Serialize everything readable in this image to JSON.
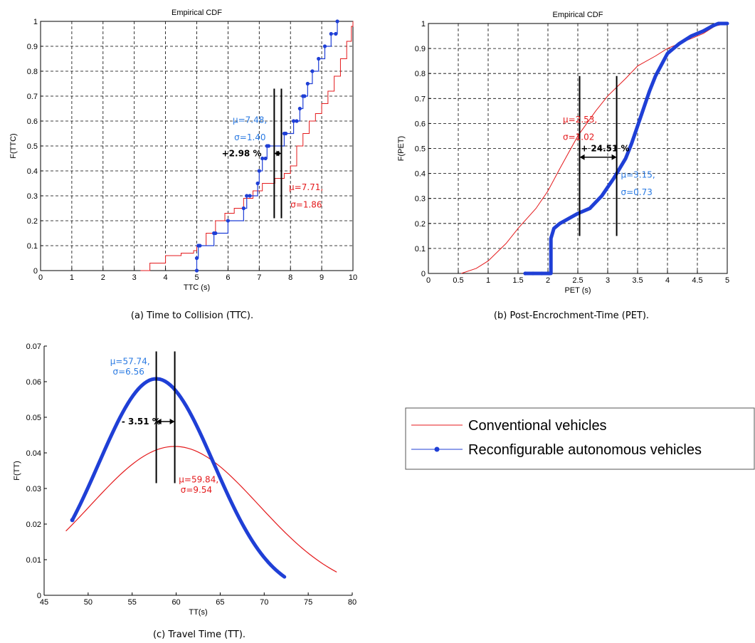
{
  "colors": {
    "conventional": "#e41a1c",
    "autonomous": "#1f3fd6",
    "annot_blue": "#2a7ae2",
    "annot_red": "#e41a1c",
    "marker": "#000000"
  },
  "legend": {
    "placement": "right-middle",
    "items": [
      "Conventional vehicles",
      "Reconfigurable autonomous vehicles"
    ]
  },
  "captions": {
    "a": "(a) Time to Collision (TTC).",
    "b": "(b) Post-Encrochment-Time (PET).",
    "c": "(c) Travel Time (TT)."
  },
  "chart_data": [
    {
      "id": "a",
      "type": "line",
      "title": "Empirical CDF",
      "xlabel": "TTC (s)",
      "ylabel": "F(TTC)",
      "xlim": [
        0,
        10
      ],
      "ylim": [
        0,
        1
      ],
      "xticks": [
        0,
        1,
        2,
        3,
        4,
        5,
        6,
        7,
        8,
        9,
        10
      ],
      "yticks": [
        0,
        0.1,
        0.2,
        0.3,
        0.4,
        0.5,
        0.6,
        0.7,
        0.8,
        0.9,
        1
      ],
      "grid": true,
      "series": [
        {
          "name": "Conventional vehicles",
          "style": "step",
          "x": [
            3.2,
            3.5,
            4.0,
            4.5,
            4.9,
            5.0,
            5.3,
            5.6,
            5.9,
            6.2,
            6.5,
            6.8,
            7.1,
            7.5,
            7.8,
            8.0,
            8.2,
            8.4,
            8.6,
            8.8,
            9.0,
            9.2,
            9.4,
            9.6,
            9.8,
            9.95,
            10.0
          ],
          "y": [
            0.0,
            0.03,
            0.06,
            0.07,
            0.08,
            0.1,
            0.15,
            0.2,
            0.23,
            0.25,
            0.29,
            0.32,
            0.35,
            0.37,
            0.39,
            0.42,
            0.5,
            0.55,
            0.6,
            0.63,
            0.67,
            0.72,
            0.78,
            0.85,
            0.92,
            0.98,
            1.0
          ]
        },
        {
          "name": "Reconfigurable autonomous vehicles",
          "style": "step-markers",
          "x": [
            5.0,
            5.0,
            5.05,
            5.1,
            5.55,
            5.6,
            6.0,
            6.5,
            6.6,
            6.7,
            6.95,
            7.0,
            7.1,
            7.2,
            7.25,
            7.3,
            7.8,
            7.85,
            8.1,
            8.2,
            8.3,
            8.4,
            8.45,
            8.55,
            8.7,
            8.9,
            9.1,
            9.3,
            9.45,
            9.5
          ],
          "y": [
            0.0,
            0.05,
            0.1,
            0.1,
            0.15,
            0.15,
            0.2,
            0.25,
            0.3,
            0.3,
            0.35,
            0.4,
            0.45,
            0.45,
            0.5,
            0.5,
            0.55,
            0.55,
            0.6,
            0.6,
            0.65,
            0.7,
            0.7,
            0.75,
            0.8,
            0.85,
            0.9,
            0.95,
            0.95,
            1.0
          ]
        }
      ],
      "vlines": [
        {
          "x": 7.48,
          "y0": 0.21,
          "y1": 0.73
        },
        {
          "x": 7.71,
          "y0": 0.21,
          "y1": 0.73
        }
      ],
      "arrow": {
        "x0": 7.48,
        "x1": 7.71,
        "y": 0.47
      },
      "annotations": [
        {
          "text": "+2.98 %",
          "x": 5.8,
          "y": 0.47,
          "color": "marker",
          "bold": true
        },
        {
          "text": "μ=7.48,",
          "x": 6.15,
          "y": 0.605,
          "color": "annot_blue",
          "bold": false
        },
        {
          "text": "σ=1.40",
          "x": 6.2,
          "y": 0.535,
          "color": "annot_blue",
          "bold": false
        },
        {
          "text": "μ=7.71,",
          "x": 7.95,
          "y": 0.335,
          "color": "annot_red",
          "bold": false
        },
        {
          "text": "σ=1.86",
          "x": 8.0,
          "y": 0.265,
          "color": "annot_red",
          "bold": false
        }
      ]
    },
    {
      "id": "b",
      "type": "line",
      "title": "Empirical CDF",
      "xlabel": "PET (s)",
      "ylabel": "F(PET)",
      "xlim": [
        0,
        5
      ],
      "ylim": [
        0,
        1
      ],
      "xticks": [
        0,
        0.5,
        1,
        1.5,
        2,
        2.5,
        3,
        3.5,
        4,
        4.5,
        5
      ],
      "yticks": [
        0,
        0.1,
        0.2,
        0.3,
        0.4,
        0.5,
        0.6,
        0.7,
        0.8,
        0.9,
        1
      ],
      "grid": true,
      "series": [
        {
          "name": "Conventional vehicles",
          "style": "line",
          "x": [
            0.55,
            0.8,
            1.0,
            1.3,
            1.5,
            1.8,
            2.0,
            2.2,
            2.5,
            2.8,
            3.0,
            3.3,
            3.5,
            3.8,
            4.0,
            4.3,
            4.6,
            4.8,
            5.0
          ],
          "y": [
            0.0,
            0.02,
            0.05,
            0.12,
            0.18,
            0.26,
            0.33,
            0.42,
            0.55,
            0.65,
            0.71,
            0.78,
            0.83,
            0.87,
            0.9,
            0.93,
            0.96,
            0.99,
            1.0
          ]
        },
        {
          "name": "Reconfigurable autonomous vehicles",
          "style": "thick-markers",
          "x": [
            1.62,
            1.75,
            1.9,
            2.02,
            2.05,
            2.05,
            2.1,
            2.2,
            2.35,
            2.5,
            2.7,
            2.9,
            3.1,
            3.3,
            3.4,
            3.5,
            3.6,
            3.7,
            3.8,
            4.0,
            4.2,
            4.4,
            4.6,
            4.75,
            4.85,
            5.0
          ],
          "y": [
            0.0,
            0.0,
            0.0,
            0.0,
            0.0,
            0.14,
            0.18,
            0.2,
            0.22,
            0.24,
            0.26,
            0.31,
            0.38,
            0.46,
            0.52,
            0.59,
            0.66,
            0.73,
            0.79,
            0.88,
            0.92,
            0.95,
            0.97,
            0.99,
            1.0,
            1.0
          ]
        }
      ],
      "vlines": [
        {
          "x": 2.53,
          "y0": 0.15,
          "y1": 0.79
        },
        {
          "x": 3.15,
          "y0": 0.15,
          "y1": 0.79
        }
      ],
      "arrow": {
        "x0": 2.53,
        "x1": 3.15,
        "y": 0.465
      },
      "annotations": [
        {
          "text": "+ 24.51 %",
          "x": 2.55,
          "y": 0.5,
          "color": "marker",
          "bold": true
        },
        {
          "text": "μ=2.53,",
          "x": 2.25,
          "y": 0.615,
          "color": "annot_red",
          "bold": false
        },
        {
          "text": "σ=1.02",
          "x": 2.25,
          "y": 0.545,
          "color": "annot_red",
          "bold": false
        },
        {
          "text": "μ=3.15,",
          "x": 3.22,
          "y": 0.395,
          "color": "annot_blue",
          "bold": false
        },
        {
          "text": "σ=0.73",
          "x": 3.22,
          "y": 0.325,
          "color": "annot_blue",
          "bold": false
        }
      ]
    },
    {
      "id": "c",
      "type": "line",
      "title": "",
      "xlabel": "TT(s)",
      "ylabel": "F(TT)",
      "xlim": [
        45,
        80
      ],
      "ylim": [
        0,
        0.07
      ],
      "xticks": [
        45,
        50,
        55,
        60,
        65,
        70,
        75,
        80
      ],
      "yticks": [
        0,
        0.01,
        0.02,
        0.03,
        0.04,
        0.05,
        0.06,
        0.07
      ],
      "grid": false,
      "series": [
        {
          "name": "Conventional vehicles",
          "style": "normal-pdf",
          "mu": 59.84,
          "sigma": 9.54,
          "x_range": [
            47.5,
            78.2
          ]
        },
        {
          "name": "Reconfigurable autonomous vehicles",
          "style": "normal-pdf-thick",
          "mu": 57.74,
          "sigma": 6.56,
          "x_range": [
            48.2,
            72.3
          ]
        }
      ],
      "vlines": [
        {
          "x": 57.74,
          "y0": 0.0315,
          "y1": 0.0685
        },
        {
          "x": 59.84,
          "y0": 0.0315,
          "y1": 0.0685
        }
      ],
      "arrow": {
        "x0": 57.74,
        "x1": 59.84,
        "y": 0.0488
      },
      "annotations": [
        {
          "text": "- 3.51 %",
          "x": 53.8,
          "y": 0.0488,
          "color": "marker",
          "bold": true
        },
        {
          "text": "μ=57.74,",
          "x": 52.5,
          "y": 0.0657,
          "color": "annot_blue",
          "bold": false
        },
        {
          "text": "σ=6.56",
          "x": 52.8,
          "y": 0.0628,
          "color": "annot_blue",
          "bold": false
        },
        {
          "text": "μ=59.84,",
          "x": 60.3,
          "y": 0.0325,
          "color": "annot_red",
          "bold": false
        },
        {
          "text": "σ=9.54",
          "x": 60.5,
          "y": 0.0296,
          "color": "annot_red",
          "bold": false
        }
      ]
    }
  ]
}
